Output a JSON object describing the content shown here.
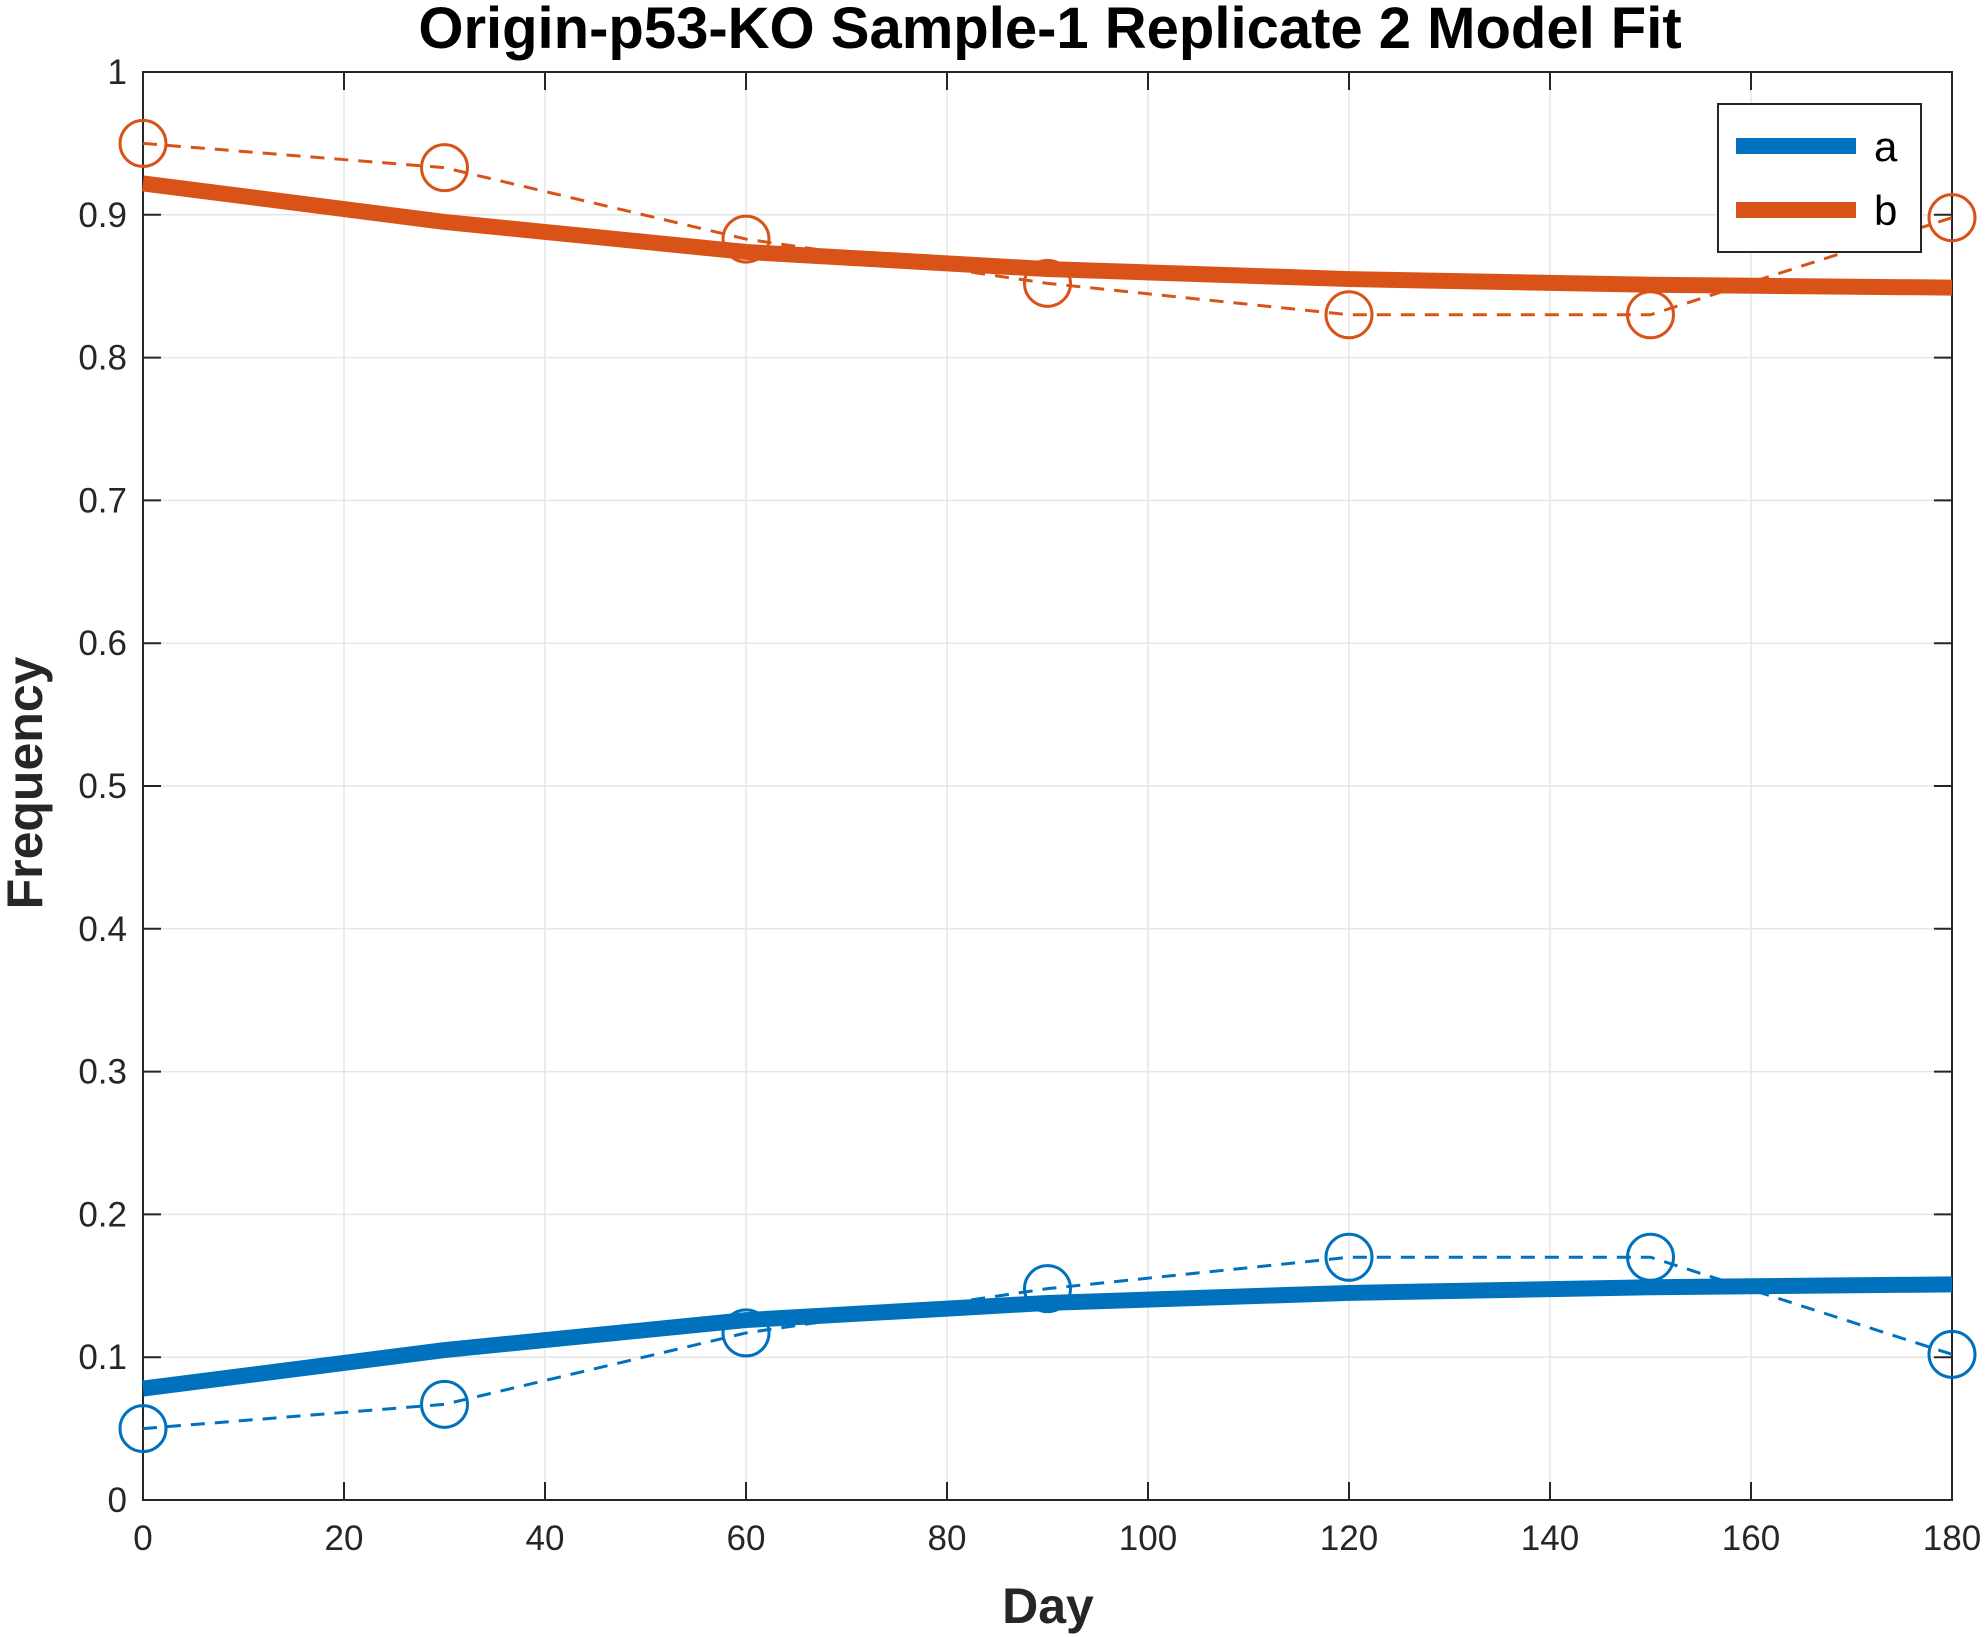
{
  "chart_data": {
    "type": "line",
    "title": "Origin-p53-KO Sample-1 Replicate 2 Model Fit",
    "xlabel": "Day",
    "ylabel": "Frequency",
    "xlim": [
      0,
      180
    ],
    "ylim": [
      0,
      1
    ],
    "xticks": [
      0,
      20,
      40,
      60,
      80,
      100,
      120,
      140,
      160,
      180
    ],
    "yticks": [
      0,
      0.1,
      0.2,
      0.3,
      0.4,
      0.5,
      0.6,
      0.7,
      0.8,
      0.9,
      1
    ],
    "xtick_labels": [
      "0",
      "20",
      "40",
      "60",
      "80",
      "100",
      "120",
      "140",
      "160",
      "180"
    ],
    "ytick_labels": [
      "0",
      "0.1",
      "0.2",
      "0.3",
      "0.4",
      "0.5",
      "0.6",
      "0.7",
      "0.8",
      "0.9",
      "1"
    ],
    "grid": true,
    "legend_position": "top-right",
    "series": [
      {
        "name": "a",
        "color": "#0072BD",
        "fit_x": [
          0,
          30,
          60,
          90,
          120,
          150,
          180
        ],
        "fit_y": [
          0.078,
          0.105,
          0.126,
          0.138,
          0.145,
          0.149,
          0.151
        ],
        "obs_x": [
          0,
          30,
          60,
          90,
          120,
          150,
          180
        ],
        "obs_y": [
          0.05,
          0.067,
          0.117,
          0.148,
          0.17,
          0.17,
          0.102
        ]
      },
      {
        "name": "b",
        "color": "#D95319",
        "fit_x": [
          0,
          30,
          60,
          90,
          120,
          150,
          180
        ],
        "fit_y": [
          0.922,
          0.895,
          0.874,
          0.862,
          0.855,
          0.851,
          0.849
        ],
        "obs_x": [
          0,
          30,
          60,
          90,
          120,
          150,
          180
        ],
        "obs_y": [
          0.95,
          0.933,
          0.883,
          0.852,
          0.83,
          0.83,
          0.898
        ]
      }
    ]
  }
}
